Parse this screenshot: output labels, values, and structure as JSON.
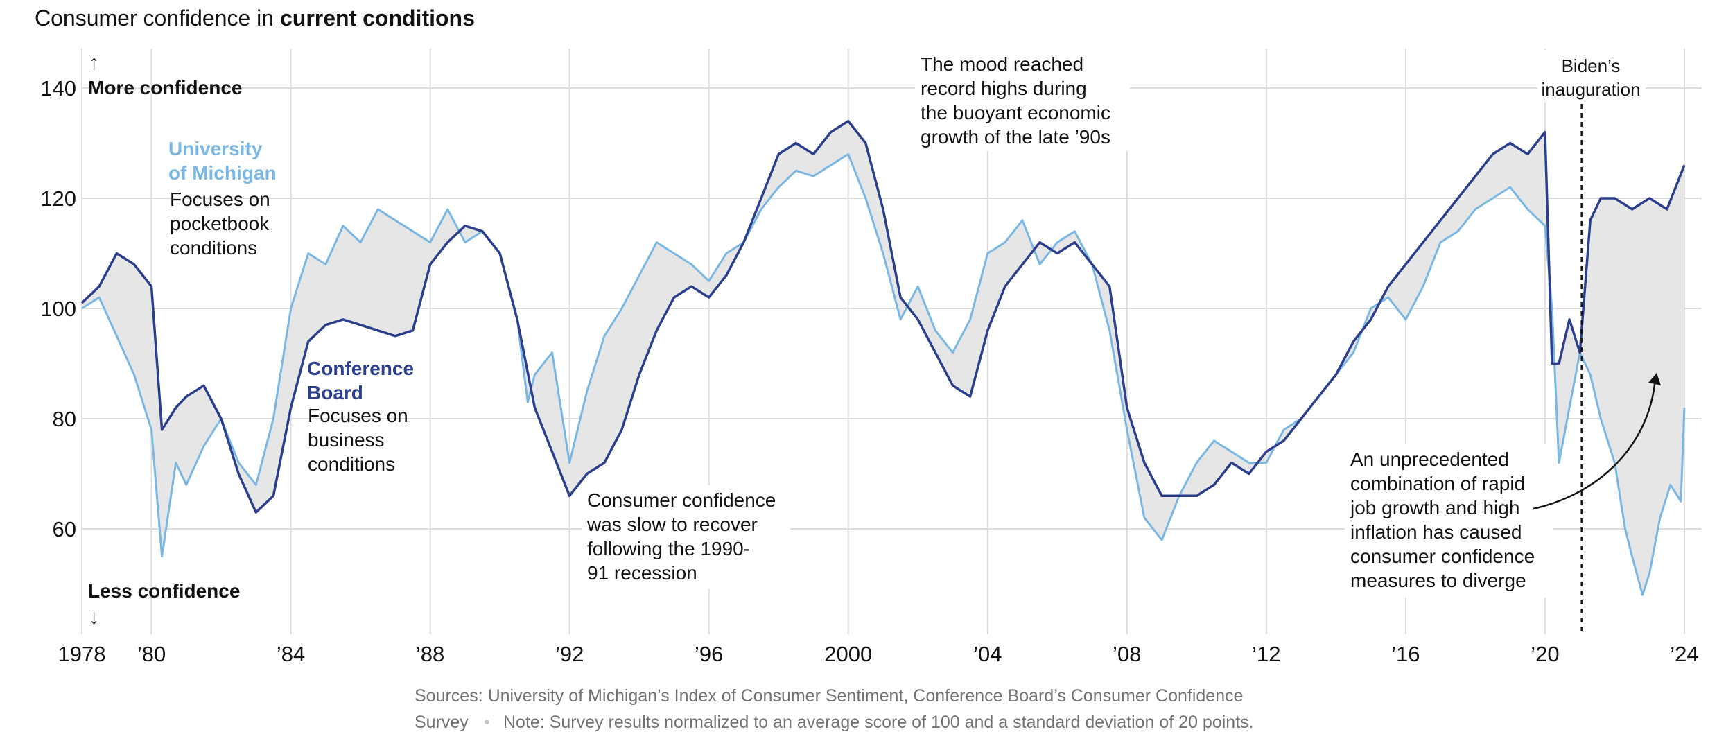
{
  "colors": {
    "umich": "#7ab8e3",
    "conference_board": "#2b3f8c",
    "fill_between": "#e6e6e6",
    "grid": "#dcdcdc",
    "source_text": "#727272"
  },
  "title": {
    "prefix": "Consumer confidence in ",
    "bold": "current conditions"
  },
  "axis": {
    "more_arrow": "↑",
    "more_label": "More confidence",
    "less_arrow": "↓",
    "less_label": "Less confidence"
  },
  "chart_data": {
    "type": "line",
    "xlim": [
      1978,
      2024.2
    ],
    "ylim": [
      40,
      146
    ],
    "grid": true,
    "y_ticks": [
      60,
      80,
      100,
      120,
      140
    ],
    "x_ticks": [
      {
        "value": 1978,
        "label": "1978"
      },
      {
        "value": 1980,
        "label": "’80"
      },
      {
        "value": 1984,
        "label": "’84"
      },
      {
        "value": 1988,
        "label": "’88"
      },
      {
        "value": 1992,
        "label": "’92"
      },
      {
        "value": 1996,
        "label": "’96"
      },
      {
        "value": 2000,
        "label": "2000"
      },
      {
        "value": 2004,
        "label": "’04"
      },
      {
        "value": 2008,
        "label": "’08"
      },
      {
        "value": 2012,
        "label": "’12"
      },
      {
        "value": 2016,
        "label": "’16"
      },
      {
        "value": 2020,
        "label": "’20"
      },
      {
        "value": 2024,
        "label": "’24"
      }
    ],
    "series": [
      {
        "name": "University of Michigan",
        "color": "#7ab8e3",
        "x": [
          1978.0,
          1978.5,
          1979.0,
          1979.5,
          1980.0,
          1980.3,
          1980.7,
          1981.0,
          1981.5,
          1982.0,
          1982.5,
          1983.0,
          1983.5,
          1984.0,
          1984.5,
          1985.0,
          1985.5,
          1986.0,
          1986.5,
          1987.0,
          1987.5,
          1988.0,
          1988.5,
          1989.0,
          1989.5,
          1990.0,
          1990.5,
          1990.8,
          1991.0,
          1991.5,
          1992.0,
          1992.5,
          1993.0,
          1993.5,
          1994.0,
          1994.5,
          1995.0,
          1995.5,
          1996.0,
          1996.5,
          1997.0,
          1997.5,
          1998.0,
          1998.5,
          1999.0,
          1999.5,
          2000.0,
          2000.5,
          2001.0,
          2001.5,
          2002.0,
          2002.5,
          2003.0,
          2003.5,
          2004.0,
          2004.5,
          2005.0,
          2005.5,
          2006.0,
          2006.5,
          2007.0,
          2007.5,
          2008.0,
          2008.5,
          2009.0,
          2009.5,
          2010.0,
          2010.5,
          2011.0,
          2011.5,
          2012.0,
          2012.5,
          2013.0,
          2013.5,
          2014.0,
          2014.5,
          2015.0,
          2015.5,
          2016.0,
          2016.5,
          2017.0,
          2017.5,
          2018.0,
          2018.5,
          2019.0,
          2019.5,
          2020.0,
          2020.2,
          2020.4,
          2020.7,
          2021.0,
          2021.3,
          2021.6,
          2022.0,
          2022.3,
          2022.5,
          2022.8,
          2023.0,
          2023.3,
          2023.6,
          2023.9,
          2024.0
        ],
        "y": [
          100,
          102,
          95,
          88,
          78,
          55,
          72,
          68,
          75,
          80,
          72,
          68,
          80,
          100,
          110,
          108,
          115,
          112,
          118,
          116,
          114,
          112,
          118,
          112,
          114,
          110,
          98,
          83,
          88,
          92,
          72,
          85,
          95,
          100,
          106,
          112,
          110,
          108,
          105,
          110,
          112,
          118,
          122,
          125,
          124,
          126,
          128,
          120,
          110,
          98,
          104,
          96,
          92,
          98,
          110,
          112,
          116,
          108,
          112,
          114,
          108,
          96,
          78,
          62,
          58,
          66,
          72,
          76,
          74,
          72,
          72,
          78,
          80,
          84,
          88,
          92,
          100,
          102,
          98,
          104,
          112,
          114,
          118,
          120,
          122,
          118,
          115,
          100,
          72,
          82,
          92,
          88,
          80,
          72,
          60,
          55,
          48,
          52,
          62,
          68,
          65,
          82
        ]
      },
      {
        "name": "Conference Board",
        "color": "#2b3f8c",
        "x": [
          1978.0,
          1978.5,
          1979.0,
          1979.5,
          1980.0,
          1980.3,
          1980.7,
          1981.0,
          1981.5,
          1982.0,
          1982.5,
          1983.0,
          1983.5,
          1984.0,
          1984.5,
          1985.0,
          1985.5,
          1986.0,
          1986.5,
          1987.0,
          1987.5,
          1988.0,
          1988.5,
          1989.0,
          1989.5,
          1990.0,
          1990.5,
          1991.0,
          1991.5,
          1992.0,
          1992.5,
          1993.0,
          1993.5,
          1994.0,
          1994.5,
          1995.0,
          1995.5,
          1996.0,
          1996.5,
          1997.0,
          1997.5,
          1998.0,
          1998.5,
          1999.0,
          1999.5,
          2000.0,
          2000.5,
          2001.0,
          2001.5,
          2002.0,
          2002.5,
          2003.0,
          2003.5,
          2004.0,
          2004.5,
          2005.0,
          2005.5,
          2006.0,
          2006.5,
          2007.0,
          2007.5,
          2008.0,
          2008.5,
          2009.0,
          2009.5,
          2010.0,
          2010.5,
          2011.0,
          2011.5,
          2012.0,
          2012.5,
          2013.0,
          2013.5,
          2014.0,
          2014.5,
          2015.0,
          2015.5,
          2016.0,
          2016.5,
          2017.0,
          2017.5,
          2018.0,
          2018.5,
          2019.0,
          2019.5,
          2020.0,
          2020.2,
          2020.4,
          2020.7,
          2021.0,
          2021.3,
          2021.6,
          2022.0,
          2022.5,
          2023.0,
          2023.5,
          2024.0
        ],
        "y": [
          101,
          104,
          110,
          108,
          104,
          78,
          82,
          84,
          86,
          80,
          70,
          63,
          66,
          82,
          94,
          97,
          98,
          97,
          96,
          95,
          96,
          108,
          112,
          115,
          114,
          110,
          98,
          82,
          74,
          66,
          70,
          72,
          78,
          88,
          96,
          102,
          104,
          102,
          106,
          112,
          120,
          128,
          130,
          128,
          132,
          134,
          130,
          118,
          102,
          98,
          92,
          86,
          84,
          96,
          104,
          108,
          112,
          110,
          112,
          108,
          104,
          82,
          72,
          66,
          66,
          66,
          68,
          72,
          70,
          74,
          76,
          80,
          84,
          88,
          94,
          98,
          104,
          108,
          112,
          116,
          120,
          124,
          128,
          130,
          128,
          132,
          90,
          90,
          98,
          92,
          116,
          120,
          120,
          118,
          120,
          118,
          126
        ]
      }
    ]
  },
  "legend_labels": {
    "umich_name": [
      "University",
      "of Michigan"
    ],
    "umich_desc": [
      "Focuses on",
      "pocketbook",
      "conditions"
    ],
    "cb_name": [
      "Conference",
      "Board"
    ],
    "cb_desc": [
      "Focuses on",
      "business",
      "conditions"
    ]
  },
  "annotations": {
    "record_highs": [
      "The mood reached",
      "record highs during",
      "the buoyant economic",
      "growth of the late ’90s"
    ],
    "slow_recovery": [
      "Consumer confidence",
      "was slow to recover",
      "following the 1990-",
      "91 recession"
    ],
    "biden": [
      "Biden’s",
      "inauguration"
    ],
    "biden_x": 2021.05,
    "diverge": [
      "An unprecedented",
      "combination of rapid",
      "job growth and high",
      "inflation has caused",
      "consumer confidence",
      "measures to diverge"
    ]
  },
  "source": {
    "line1": "Sources: University of Michigan’s Index of Consumer Sentiment, Conference Board’s Consumer Confidence",
    "line2a": "Survey",
    "dot": "•",
    "line2b": "Note: Survey results normalized to an average score of 100 and a standard deviation of 20 points."
  }
}
